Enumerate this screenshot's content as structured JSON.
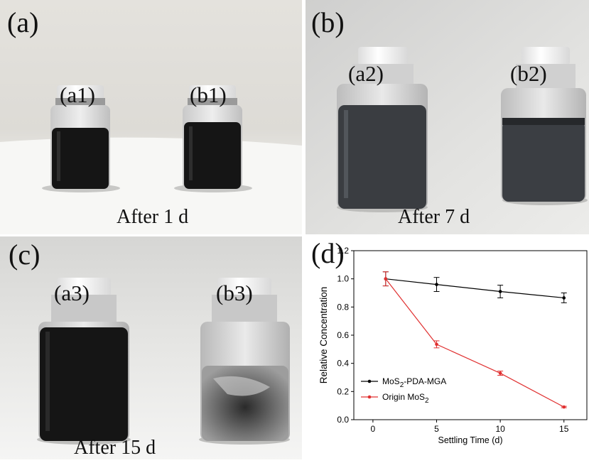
{
  "panels": [
    {
      "id": "a",
      "label": "(a)",
      "vial_labels": [
        "(a1)",
        "(b1)"
      ],
      "caption": "After 1 d"
    },
    {
      "id": "b",
      "label": "(b)",
      "vial_labels": [
        "(a2)",
        "(b2)"
      ],
      "caption": "After 7 d"
    },
    {
      "id": "c",
      "label": "(c)",
      "vial_labels": [
        "(a3)",
        "(b3)"
      ],
      "caption": "After 15 d"
    },
    {
      "id": "d",
      "label": "(d)"
    }
  ],
  "colors": {
    "series1": "#000000",
    "series2": "#e03030",
    "liquid_dark": "#151515",
    "liquid_grey": "#3a3d41",
    "cap": "#f6f6f6"
  },
  "chart_data": {
    "type": "line",
    "xlabel": "Settling Time (d)",
    "ylabel": "Relative Concentration",
    "xlim": [
      -1.5,
      16.8
    ],
    "ylim": [
      0.0,
      1.2
    ],
    "xticks": [
      0,
      5,
      10,
      15
    ],
    "yticks": [
      0.0,
      0.2,
      0.4,
      0.6,
      0.8,
      1.0,
      1.2
    ],
    "grid": false,
    "legend": "bottom-left",
    "series": [
      {
        "name": "MoS2-PDA-MGA",
        "name_base": "MoS",
        "name_sub": "2",
        "name_rest": "-PDA-MGA",
        "color": "#000000",
        "marker": "circle",
        "x": [
          1,
          5,
          10,
          15
        ],
        "y": [
          1.0,
          0.96,
          0.91,
          0.865
        ],
        "err": [
          0.05,
          0.05,
          0.045,
          0.035
        ]
      },
      {
        "name": "Origin MoS2",
        "name_base": "Origin MoS",
        "name_sub": "2",
        "name_rest": "",
        "color": "#e03030",
        "marker": "circle",
        "x": [
          1,
          5,
          10,
          15
        ],
        "y": [
          1.0,
          0.535,
          0.33,
          0.09
        ],
        "err": [
          0.05,
          0.025,
          0.015,
          0.005
        ]
      }
    ]
  }
}
